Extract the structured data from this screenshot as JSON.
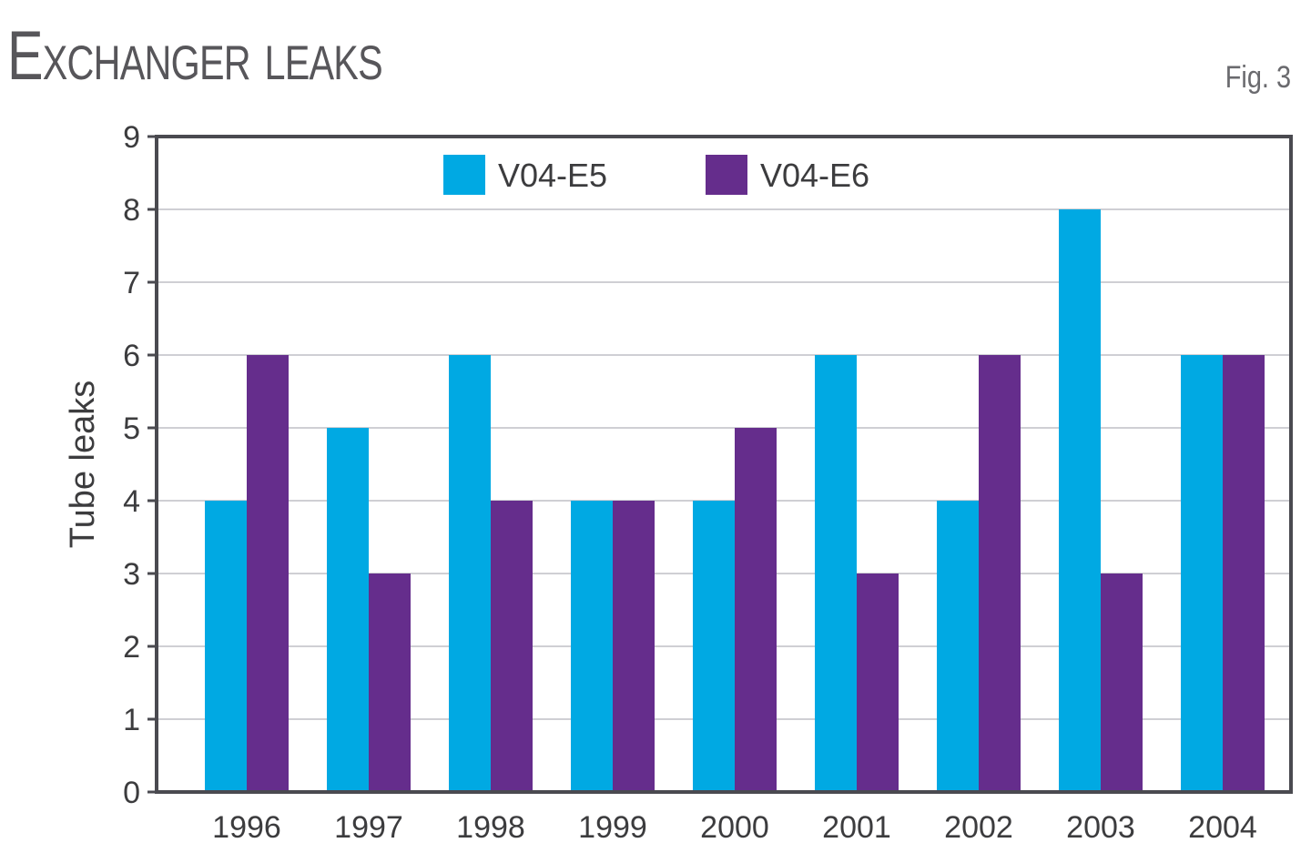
{
  "header": {
    "title": "Exchanger leaks",
    "fig_label": "Fig. 3"
  },
  "chart_data": {
    "type": "bar",
    "title": "Exchanger leaks",
    "xlabel": "",
    "ylabel": "Tube leaks",
    "ylim": [
      0,
      9
    ],
    "yticks": [
      0,
      1,
      2,
      3,
      4,
      5,
      6,
      7,
      8,
      9
    ],
    "grid": true,
    "legend_position": "top-center",
    "categories": [
      "1996",
      "1997",
      "1998",
      "1999",
      "2000",
      "2001",
      "2002",
      "2003",
      "2004"
    ],
    "series": [
      {
        "name": "V04-E5",
        "color": "#00a9e3",
        "values": [
          4,
          5,
          6,
          4,
          4,
          6,
          4,
          8,
          6
        ]
      },
      {
        "name": "V04-E6",
        "color": "#652d8c",
        "values": [
          6,
          3,
          4,
          4,
          5,
          3,
          6,
          3,
          6
        ]
      }
    ]
  }
}
